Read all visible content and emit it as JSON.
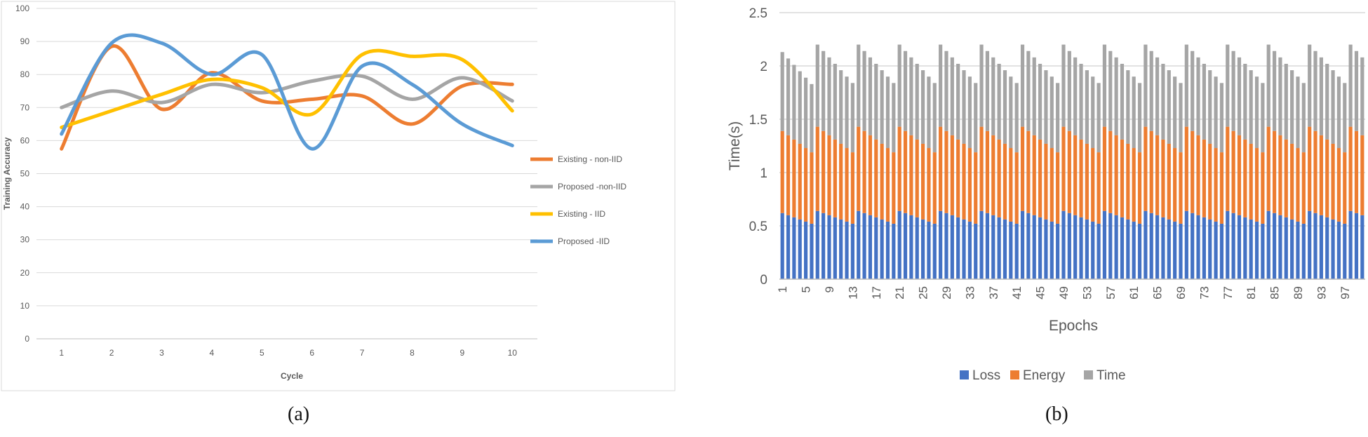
{
  "captions": {
    "a": "(a)",
    "b": "(b)"
  },
  "chart_data": [
    {
      "type": "line",
      "title": "",
      "xlabel": "Cycle",
      "ylabel": "Training Accuracy",
      "x": [
        1,
        2,
        3,
        4,
        5,
        6,
        7,
        8,
        9,
        10
      ],
      "ylim": [
        0,
        100
      ],
      "yticks": [
        "0",
        "10",
        "20",
        "30",
        "40",
        "50",
        "60",
        "70",
        "80",
        "90",
        "100"
      ],
      "grid": true,
      "legend_position": "right",
      "series": [
        {
          "name": "Existing - non-IID",
          "color": "#ED7D31",
          "values": [
            57.5,
            88.5,
            69.5,
            80.5,
            72,
            72.5,
            73.5,
            65,
            76.5,
            77
          ]
        },
        {
          "name": "Proposed -non-IID",
          "color": "#A5A5A5",
          "values": [
            70,
            75,
            71.5,
            77,
            74.5,
            78,
            79.5,
            72.5,
            79,
            72
          ]
        },
        {
          "name": "Existing  - IID",
          "color": "#FFC000",
          "values": [
            64,
            69,
            74,
            78.5,
            76,
            68,
            86,
            85.5,
            84.5,
            69
          ]
        },
        {
          "name": "Proposed -IID",
          "color": "#5B9BD5",
          "values": [
            62,
            89.5,
            89.5,
            80,
            86,
            57.5,
            82.5,
            77,
            65,
            58.5
          ]
        }
      ]
    },
    {
      "type": "bar",
      "stacked": true,
      "title": "",
      "xlabel": "Epochs",
      "ylabel": "Time(s)",
      "ylim": [
        0,
        2.5
      ],
      "yticks": [
        "0",
        "0.5",
        "1",
        "1.5",
        "2",
        "2.5"
      ],
      "grid": true,
      "legend_position": "bottom",
      "category_count": 100,
      "xtick_labels": [
        "1",
        "5",
        "9",
        "13",
        "17",
        "21",
        "25",
        "29",
        "33",
        "37",
        "41",
        "45",
        "49",
        "53",
        "57",
        "61",
        "65",
        "69",
        "73",
        "77",
        "81",
        "85",
        "89",
        "93",
        "97"
      ],
      "series": [
        {
          "name": "Loss",
          "color": "#4472C4",
          "values": [
            0.62,
            0.6,
            0.58,
            0.56,
            0.54,
            0.52,
            0.64,
            0.62,
            0.6,
            0.58,
            0.56,
            0.54,
            0.52,
            0.64,
            0.62,
            0.6,
            0.58,
            0.56,
            0.54,
            0.52,
            0.64,
            0.62,
            0.6,
            0.58,
            0.56,
            0.54,
            0.52,
            0.64,
            0.62,
            0.6,
            0.58,
            0.56,
            0.54,
            0.52,
            0.64,
            0.62,
            0.6,
            0.58,
            0.56,
            0.54,
            0.52,
            0.64,
            0.62,
            0.6,
            0.58,
            0.56,
            0.54,
            0.52,
            0.64,
            0.62,
            0.6,
            0.58,
            0.56,
            0.54,
            0.52,
            0.64,
            0.62,
            0.6,
            0.58,
            0.56,
            0.54,
            0.52,
            0.64,
            0.62,
            0.6,
            0.58,
            0.56,
            0.54,
            0.52,
            0.64,
            0.62,
            0.6,
            0.58,
            0.56,
            0.54,
            0.52,
            0.64,
            0.62,
            0.6,
            0.58,
            0.56,
            0.54,
            0.52,
            0.64,
            0.62,
            0.6,
            0.58,
            0.56,
            0.54,
            0.52,
            0.64,
            0.62,
            0.6,
            0.58,
            0.56,
            0.54,
            0.52,
            0.64,
            0.62,
            0.6
          ]
        },
        {
          "name": "Energy",
          "color": "#ED7D31",
          "values": [
            0.77,
            0.75,
            0.73,
            0.71,
            0.69,
            0.67,
            0.79,
            0.77,
            0.75,
            0.73,
            0.71,
            0.69,
            0.67,
            0.79,
            0.77,
            0.75,
            0.73,
            0.71,
            0.69,
            0.67,
            0.79,
            0.77,
            0.75,
            0.73,
            0.71,
            0.69,
            0.67,
            0.79,
            0.77,
            0.75,
            0.73,
            0.71,
            0.69,
            0.67,
            0.79,
            0.77,
            0.75,
            0.73,
            0.71,
            0.69,
            0.67,
            0.79,
            0.77,
            0.75,
            0.73,
            0.71,
            0.69,
            0.67,
            0.79,
            0.77,
            0.75,
            0.73,
            0.71,
            0.69,
            0.67,
            0.79,
            0.77,
            0.75,
            0.73,
            0.71,
            0.69,
            0.67,
            0.79,
            0.77,
            0.75,
            0.73,
            0.71,
            0.69,
            0.67,
            0.79,
            0.77,
            0.75,
            0.73,
            0.71,
            0.69,
            0.67,
            0.79,
            0.77,
            0.75,
            0.73,
            0.71,
            0.69,
            0.67,
            0.79,
            0.77,
            0.75,
            0.73,
            0.71,
            0.69,
            0.67,
            0.79,
            0.77,
            0.75,
            0.73,
            0.71,
            0.69,
            0.67,
            0.79,
            0.77,
            0.75
          ]
        },
        {
          "name": "Time",
          "color": "#A5A5A5",
          "values": [
            0.74,
            0.72,
            0.7,
            0.68,
            0.66,
            0.64,
            0.77,
            0.75,
            0.73,
            0.71,
            0.69,
            0.67,
            0.65,
            0.77,
            0.75,
            0.73,
            0.71,
            0.69,
            0.67,
            0.65,
            0.77,
            0.75,
            0.73,
            0.71,
            0.69,
            0.67,
            0.65,
            0.77,
            0.75,
            0.73,
            0.71,
            0.69,
            0.67,
            0.65,
            0.77,
            0.75,
            0.73,
            0.71,
            0.69,
            0.67,
            0.65,
            0.77,
            0.75,
            0.73,
            0.71,
            0.69,
            0.67,
            0.65,
            0.77,
            0.75,
            0.73,
            0.71,
            0.69,
            0.67,
            0.65,
            0.77,
            0.75,
            0.73,
            0.71,
            0.69,
            0.67,
            0.65,
            0.77,
            0.75,
            0.73,
            0.71,
            0.69,
            0.67,
            0.65,
            0.77,
            0.75,
            0.73,
            0.71,
            0.69,
            0.67,
            0.65,
            0.77,
            0.75,
            0.73,
            0.71,
            0.69,
            0.67,
            0.65,
            0.77,
            0.75,
            0.73,
            0.71,
            0.69,
            0.67,
            0.65,
            0.77,
            0.75,
            0.73,
            0.71,
            0.69,
            0.67,
            0.65,
            0.77,
            0.75,
            0.73
          ]
        }
      ]
    }
  ]
}
